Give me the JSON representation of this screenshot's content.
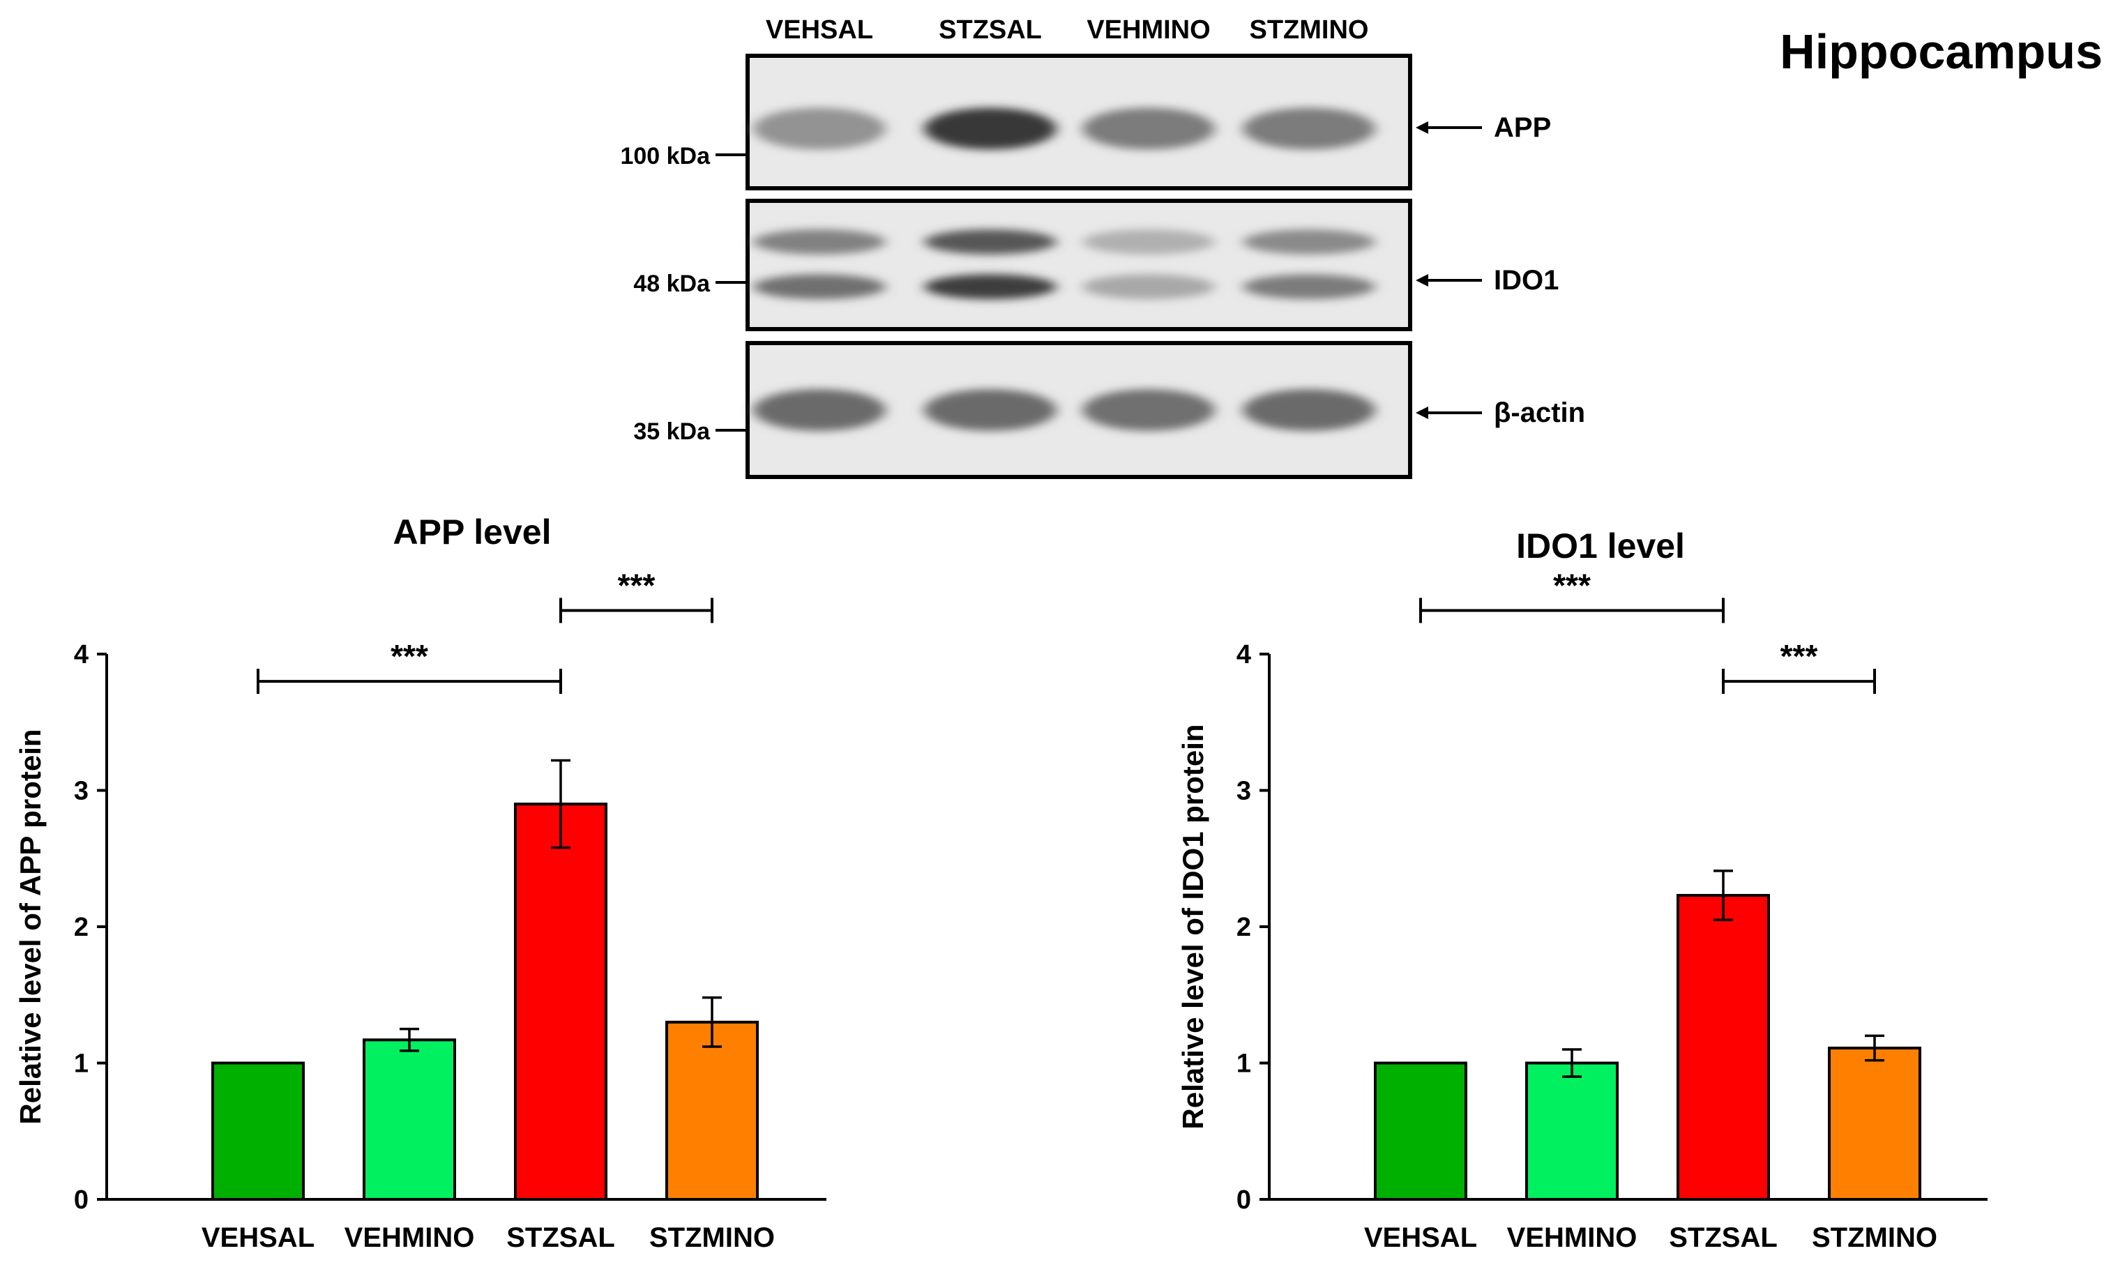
{
  "title": "Hippocampus",
  "western_blot": {
    "lanes": [
      "VEHSAL",
      "STZSAL",
      "VEHMINO",
      "STZMINO"
    ],
    "panels": [
      {
        "target": "APP",
        "marker": "100 kDa",
        "band_intensity": [
          0.38,
          0.82,
          0.5,
          0.5
        ]
      },
      {
        "target": "IDO1",
        "marker": "48 kDa",
        "band_intensity": [
          0.55,
          0.8,
          0.28,
          0.5
        ]
      },
      {
        "target": "β-actin",
        "marker": "35 kDa",
        "band_intensity": [
          0.58,
          0.58,
          0.55,
          0.58
        ]
      }
    ]
  },
  "chart_data": [
    {
      "type": "bar",
      "title": "APP level",
      "xlabel": "",
      "ylabel": "Relative level of APP protein",
      "categories": [
        "VEHSAL",
        "VEHMINO",
        "STZSAL",
        "STZMINO"
      ],
      "values": [
        1.0,
        1.17,
        2.9,
        1.3
      ],
      "errors": [
        0,
        0.08,
        0.32,
        0.18
      ],
      "colors": [
        "#00b000",
        "#00f060",
        "#ff0000",
        "#ff8000"
      ],
      "ylim": [
        0,
        4
      ],
      "yticks": [
        "0",
        "1",
        "2",
        "3",
        "4"
      ],
      "significance": [
        {
          "from": 0,
          "to": 2,
          "label": "***",
          "level": 3.8
        },
        {
          "from": 2,
          "to": 3,
          "label": "***",
          "level": 4.32
        }
      ]
    },
    {
      "type": "bar",
      "title": "IDO1 level",
      "xlabel": "",
      "ylabel": "Relative level of IDO1 protein",
      "categories": [
        "VEHSAL",
        "VEHMINO",
        "STZSAL",
        "STZMINO"
      ],
      "values": [
        1.0,
        1.0,
        2.23,
        1.11
      ],
      "errors": [
        0,
        0.1,
        0.18,
        0.09
      ],
      "colors": [
        "#00b000",
        "#00f060",
        "#ff0000",
        "#ff8000"
      ],
      "ylim": [
        0,
        4
      ],
      "yticks": [
        "0",
        "1",
        "2",
        "3",
        "4"
      ],
      "significance": [
        {
          "from": 0,
          "to": 2,
          "label": "***",
          "level": 4.32
        },
        {
          "from": 2,
          "to": 3,
          "label": "***",
          "level": 3.8
        }
      ]
    }
  ]
}
